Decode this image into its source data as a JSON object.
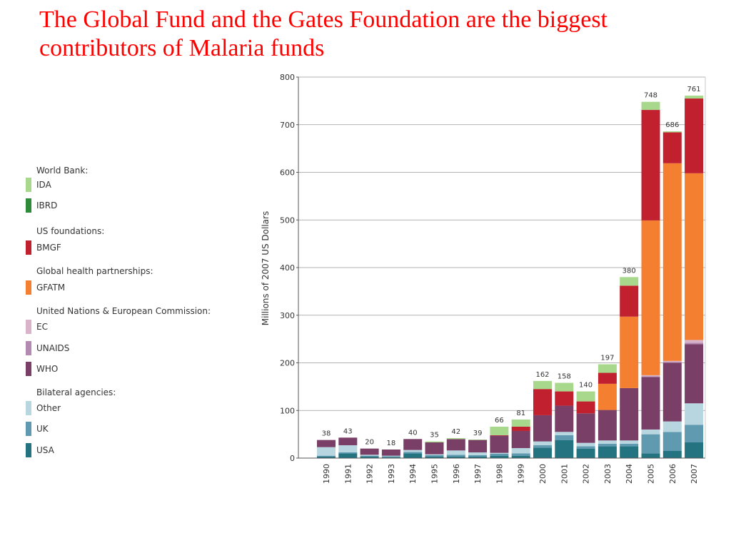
{
  "title": "The Global Fund and the Gates Foundation are the biggest contributors of Malaria funds",
  "legend": [
    {
      "group": "World Bank:",
      "items": [
        {
          "key": "ida",
          "label": "IDA",
          "color": "#a8d88c"
        },
        {
          "key": "ibrd",
          "label": "IBRD",
          "color": "#2e8b3a"
        }
      ]
    },
    {
      "group": "US foundations:",
      "items": [
        {
          "key": "bmgf",
          "label": "BMGF",
          "color": "#c1202f"
        }
      ]
    },
    {
      "group": "Global health partnerships:",
      "items": [
        {
          "key": "gfatm",
          "label": "GFATM",
          "color": "#f47f30"
        }
      ]
    },
    {
      "group": "United Nations & European Commission:",
      "items": [
        {
          "key": "ec",
          "label": "EC",
          "color": "#d9b3c9"
        },
        {
          "key": "unaids",
          "label": "UNAIDS",
          "color": "#b58ab0"
        },
        {
          "key": "who",
          "label": "WHO",
          "color": "#7a3f66"
        }
      ]
    },
    {
      "group": "Bilateral agencies:",
      "items": [
        {
          "key": "other",
          "label": "Other",
          "color": "#b8d6df"
        },
        {
          "key": "uk",
          "label": "UK",
          "color": "#5f9ab0"
        },
        {
          "key": "usa",
          "label": "USA",
          "color": "#237381"
        }
      ]
    }
  ],
  "chart_data": {
    "type": "bar",
    "stacked": true,
    "title": "",
    "xlabel": "",
    "ylabel": "Millions of 2007 US Dollars",
    "ylim": [
      0,
      800
    ],
    "yticks": [
      0,
      100,
      200,
      300,
      400,
      500,
      600,
      700,
      800
    ],
    "grid": true,
    "categories": [
      "1990",
      "1991",
      "1992",
      "1993",
      "1994",
      "1995",
      "1996",
      "1997",
      "1998",
      "1999",
      "2000",
      "2001",
      "2002",
      "2003",
      "2004",
      "2005",
      "2006",
      "2007"
    ],
    "totals": [
      38,
      43,
      20,
      18,
      40,
      35,
      42,
      39,
      66,
      81,
      162,
      158,
      140,
      197,
      380,
      748,
      686,
      761
    ],
    "series": [
      {
        "name": "USA",
        "key": "usa",
        "values": [
          3,
          10,
          3,
          2,
          10,
          3,
          3,
          3,
          5,
          5,
          22,
          38,
          20,
          25,
          25,
          10,
          15,
          33
        ]
      },
      {
        "name": "UK",
        "key": "uk",
        "values": [
          2,
          2,
          2,
          2,
          3,
          3,
          4,
          3,
          4,
          5,
          5,
          10,
          5,
          5,
          5,
          40,
          40,
          37
        ]
      },
      {
        "name": "Other",
        "key": "other",
        "values": [
          18,
          15,
          2,
          1,
          4,
          2,
          9,
          6,
          2,
          11,
          8,
          7,
          7,
          7,
          7,
          10,
          22,
          45
        ]
      },
      {
        "name": "WHO",
        "key": "who",
        "values": [
          15,
          16,
          13,
          13,
          23,
          25,
          24,
          26,
          36,
          36,
          55,
          55,
          62,
          64,
          110,
          110,
          123,
          124
        ]
      },
      {
        "name": "UNAIDS",
        "key": "unaids",
        "values": [
          0,
          0,
          0,
          0,
          0,
          0,
          0,
          0,
          0,
          0,
          0,
          0,
          0,
          0,
          0,
          2,
          2,
          3
        ]
      },
      {
        "name": "EC",
        "key": "ec",
        "values": [
          0,
          0,
          0,
          0,
          0,
          0,
          0,
          0,
          0,
          0,
          0,
          0,
          0,
          0,
          0,
          2,
          2,
          6
        ]
      },
      {
        "name": "GFATM",
        "key": "gfatm",
        "values": [
          0,
          0,
          0,
          0,
          0,
          0,
          0,
          0,
          0,
          0,
          0,
          0,
          0,
          55,
          150,
          325,
          415,
          350
        ]
      },
      {
        "name": "BMGF",
        "key": "bmgf",
        "values": [
          0,
          0,
          0,
          0,
          0,
          0,
          0,
          0,
          1,
          9,
          55,
          30,
          25,
          23,
          65,
          232,
          65,
          157
        ]
      },
      {
        "name": "IBRD",
        "key": "ibrd",
        "values": [
          0,
          0,
          0,
          0,
          0,
          0,
          0,
          0,
          0,
          0,
          0,
          0,
          0,
          0,
          0,
          0,
          0,
          0
        ]
      },
      {
        "name": "IDA",
        "key": "ida",
        "values": [
          0,
          0,
          0,
          0,
          0,
          2,
          2,
          1,
          18,
          15,
          17,
          18,
          21,
          18,
          18,
          17,
          2,
          6
        ]
      }
    ]
  }
}
